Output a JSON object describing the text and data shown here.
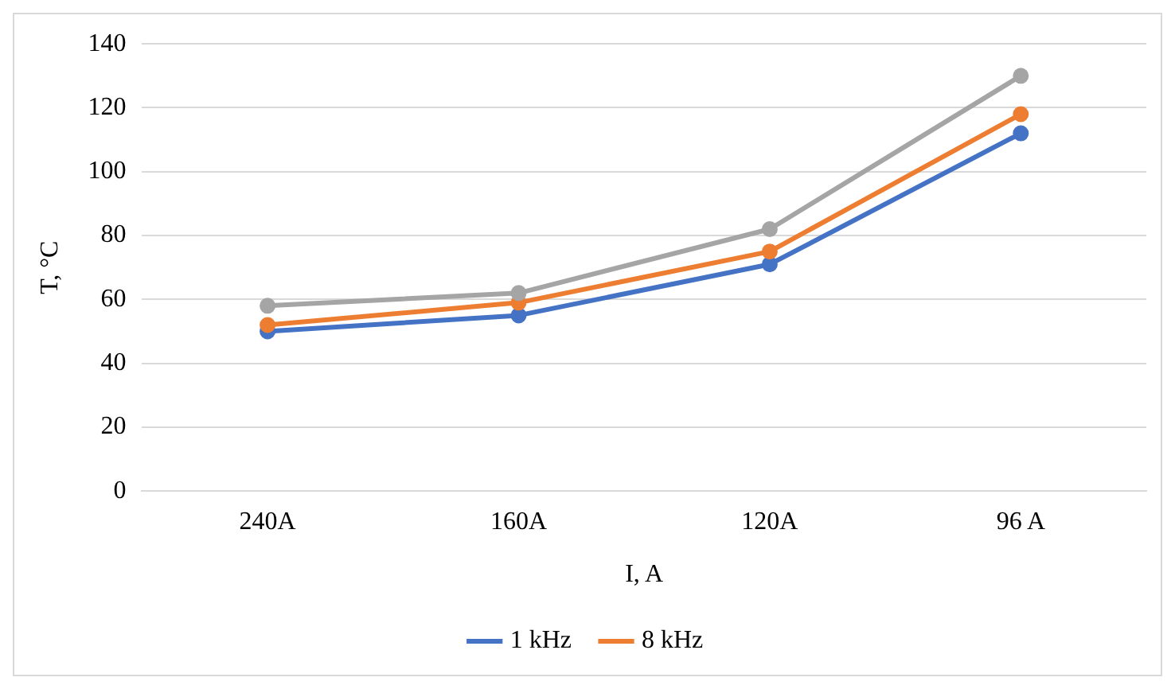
{
  "chart_data": {
    "type": "line",
    "xlabel": "I, A",
    "ylabel": "T, °C",
    "categories": [
      "240A",
      "160A",
      "120A",
      "96 A"
    ],
    "series": [
      {
        "name": "1 kHz",
        "color": "#4472c4",
        "values": [
          50,
          55,
          71,
          112
        ]
      },
      {
        "name": "8 kHz",
        "color": "#ed7d31",
        "values": [
          52,
          59,
          75,
          118
        ]
      },
      {
        "color": "#a5a5a5",
        "values": [
          58,
          62,
          82,
          130
        ]
      }
    ],
    "ylim": [
      0,
      140
    ],
    "yticks": [
      0,
      20,
      40,
      60,
      80,
      100,
      120,
      140
    ],
    "grid": "y",
    "legend": "bottom",
    "marker": "circle",
    "line_style": "solid"
  }
}
